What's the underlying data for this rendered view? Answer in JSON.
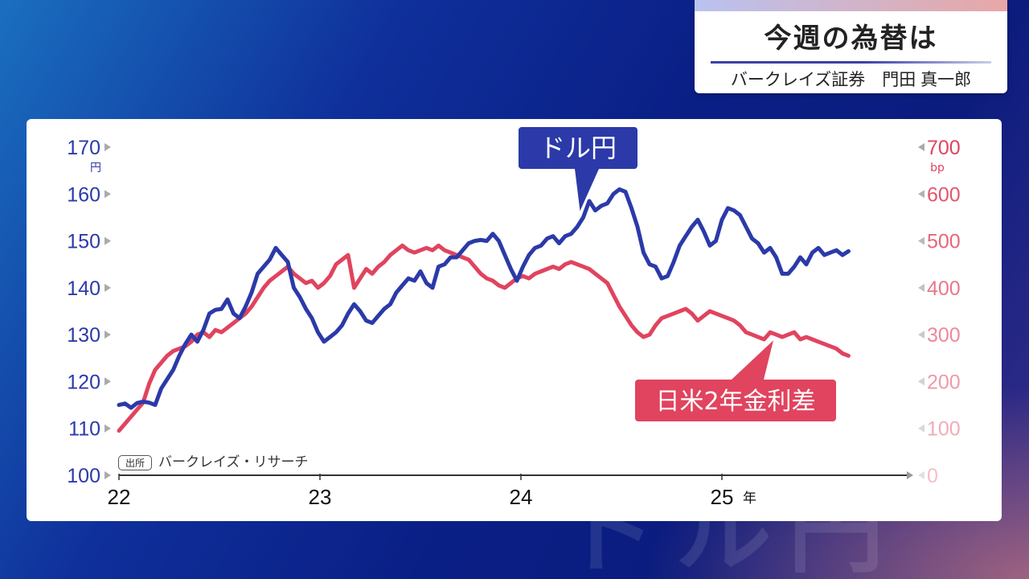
{
  "header": {
    "title": "今週の為替は",
    "subtitle": "バークレイズ証券　門田 真一郎"
  },
  "source": {
    "badge": "出所",
    "text": "バークレイズ・リサーチ"
  },
  "watermark": "ドル円",
  "colors": {
    "usd_jpy": "#2b3aa8",
    "rate_diff": "#e0445f",
    "left_axis": "#2b3aa8",
    "right_axis": "#e0445f"
  },
  "chart_data": {
    "type": "line",
    "x_ticks": [
      "22",
      "23",
      "24",
      "25"
    ],
    "x_unit": "年",
    "x_range": [
      2022.0,
      2025.92
    ],
    "y_left": {
      "unit": "円",
      "ticks": [
        "100",
        "110",
        "120",
        "130",
        "140",
        "150",
        "160",
        "170"
      ],
      "ylim": [
        100,
        170
      ]
    },
    "y_right": {
      "unit": "bp",
      "ticks": [
        "0",
        "100",
        "200",
        "300",
        "400",
        "500",
        "600",
        "700"
      ],
      "ylim": [
        0,
        700
      ]
    },
    "grid": false,
    "series": [
      {
        "name": "ドル円",
        "axis": "left",
        "x": [
          2022.0,
          2022.03,
          2022.06,
          2022.09,
          2022.12,
          2022.15,
          2022.18,
          2022.21,
          2022.24,
          2022.27,
          2022.3,
          2022.33,
          2022.36,
          2022.39,
          2022.42,
          2022.45,
          2022.48,
          2022.51,
          2022.54,
          2022.57,
          2022.6,
          2022.63,
          2022.66,
          2022.69,
          2022.72,
          2022.75,
          2022.78,
          2022.81,
          2022.84,
          2022.87,
          2022.9,
          2022.93,
          2022.96,
          2022.99,
          2023.02,
          2023.05,
          2023.08,
          2023.11,
          2023.14,
          2023.17,
          2023.2,
          2023.23,
          2023.26,
          2023.29,
          2023.32,
          2023.35,
          2023.38,
          2023.41,
          2023.44,
          2023.47,
          2023.5,
          2023.53,
          2023.56,
          2023.59,
          2023.62,
          2023.65,
          2023.68,
          2023.71,
          2023.74,
          2023.77,
          2023.8,
          2023.83,
          2023.86,
          2023.89,
          2023.92,
          2023.95,
          2023.98,
          2024.01,
          2024.04,
          2024.07,
          2024.1,
          2024.13,
          2024.16,
          2024.19,
          2024.22,
          2024.25,
          2024.28,
          2024.31,
          2024.34,
          2024.37,
          2024.4,
          2024.43,
          2024.46,
          2024.49,
          2024.52,
          2024.55,
          2024.58,
          2024.61,
          2024.64,
          2024.67,
          2024.7,
          2024.73,
          2024.76,
          2024.79,
          2024.82,
          2024.85,
          2024.88,
          2024.91,
          2024.94,
          2024.97,
          2025.0,
          2025.03,
          2025.06,
          2025.09,
          2025.12,
          2025.15,
          2025.18,
          2025.21,
          2025.24,
          2025.27,
          2025.3,
          2025.33,
          2025.36,
          2025.39,
          2025.42,
          2025.45,
          2025.48,
          2025.51,
          2025.54,
          2025.57,
          2025.6,
          2025.63
        ],
        "values": [
          115.0,
          115.3,
          114.4,
          115.4,
          115.7,
          115.5,
          115.0,
          118.5,
          120.5,
          122.5,
          125.5,
          128.0,
          130.0,
          128.5,
          131.0,
          134.5,
          135.3,
          135.5,
          137.5,
          134.5,
          133.5,
          136.0,
          139.0,
          143.0,
          144.5,
          146.0,
          148.5,
          147.0,
          145.5,
          140.0,
          138.0,
          135.5,
          133.5,
          130.5,
          128.5,
          129.5,
          130.5,
          132.0,
          134.5,
          136.5,
          135.0,
          133.0,
          132.5,
          134.0,
          135.5,
          136.5,
          139.0,
          140.5,
          142.0,
          141.5,
          143.5,
          141.0,
          140.0,
          144.5,
          145.0,
          146.5,
          146.5,
          148.0,
          149.5,
          150.0,
          150.2,
          150.0,
          151.5,
          150.0,
          147.0,
          144.0,
          141.5,
          144.5,
          147.0,
          148.5,
          149.0,
          150.5,
          151.0,
          149.5,
          151.0,
          151.5,
          153.0,
          155.0,
          158.5,
          156.5,
          157.5,
          158.0,
          160.0,
          161.0,
          160.5,
          157.0,
          153.0,
          147.5,
          145.0,
          144.5,
          142.0,
          142.5,
          145.5,
          149.0,
          151.0,
          153.0,
          154.5,
          152.0,
          149.0,
          150.0,
          154.5,
          157.0,
          156.5,
          155.5,
          153.0,
          150.5,
          149.5,
          147.5,
          148.5,
          146.5,
          143.0,
          143.0,
          144.5,
          146.5,
          145.0,
          147.5,
          148.5,
          147.0,
          147.5,
          148.0,
          147.0,
          147.8
        ]
      },
      {
        "name": "日米2年金利差",
        "axis": "right",
        "x": [
          2022.0,
          2022.03,
          2022.06,
          2022.09,
          2022.12,
          2022.15,
          2022.18,
          2022.21,
          2022.24,
          2022.27,
          2022.3,
          2022.33,
          2022.36,
          2022.39,
          2022.42,
          2022.45,
          2022.48,
          2022.51,
          2022.54,
          2022.57,
          2022.6,
          2022.63,
          2022.66,
          2022.69,
          2022.72,
          2022.75,
          2022.78,
          2022.81,
          2022.84,
          2022.87,
          2022.9,
          2022.93,
          2022.96,
          2022.99,
          2023.02,
          2023.05,
          2023.08,
          2023.11,
          2023.14,
          2023.17,
          2023.2,
          2023.23,
          2023.26,
          2023.29,
          2023.32,
          2023.35,
          2023.38,
          2023.41,
          2023.44,
          2023.47,
          2023.5,
          2023.53,
          2023.56,
          2023.59,
          2023.62,
          2023.65,
          2023.68,
          2023.71,
          2023.74,
          2023.77,
          2023.8,
          2023.83,
          2023.86,
          2023.89,
          2023.92,
          2023.95,
          2023.98,
          2024.01,
          2024.04,
          2024.07,
          2024.1,
          2024.13,
          2024.16,
          2024.19,
          2024.22,
          2024.25,
          2024.28,
          2024.31,
          2024.34,
          2024.37,
          2024.4,
          2024.43,
          2024.46,
          2024.49,
          2024.52,
          2024.55,
          2024.58,
          2024.61,
          2024.64,
          2024.67,
          2024.7,
          2024.73,
          2024.76,
          2024.79,
          2024.82,
          2024.85,
          2024.88,
          2024.91,
          2024.94,
          2024.97,
          2025.0,
          2025.03,
          2025.06,
          2025.09,
          2025.12,
          2025.15,
          2025.18,
          2025.21,
          2025.24,
          2025.27,
          2025.3,
          2025.33,
          2025.36,
          2025.39,
          2025.42,
          2025.45,
          2025.48,
          2025.51,
          2025.54,
          2025.57,
          2025.6,
          2025.63
        ],
        "values": [
          95,
          110,
          125,
          140,
          155,
          195,
          225,
          240,
          255,
          265,
          270,
          275,
          285,
          300,
          305,
          295,
          310,
          305,
          315,
          325,
          335,
          345,
          360,
          380,
          400,
          415,
          425,
          435,
          445,
          430,
          420,
          410,
          415,
          400,
          410,
          425,
          450,
          460,
          470,
          400,
          420,
          440,
          430,
          445,
          455,
          470,
          480,
          490,
          480,
          475,
          480,
          485,
          480,
          490,
          480,
          475,
          470,
          465,
          460,
          445,
          430,
          420,
          415,
          405,
          400,
          410,
          420,
          425,
          420,
          430,
          435,
          440,
          445,
          440,
          450,
          455,
          450,
          445,
          440,
          430,
          420,
          410,
          385,
          360,
          340,
          320,
          305,
          295,
          300,
          320,
          335,
          340,
          345,
          350,
          355,
          345,
          330,
          340,
          350,
          345,
          340,
          335,
          330,
          320,
          305,
          300,
          295,
          290,
          305,
          300,
          295,
          300,
          305,
          290,
          295,
          290,
          285,
          280,
          275,
          270,
          260,
          255
        ]
      }
    ],
    "annotations": [
      {
        "label": "ドル円",
        "series": "ドル円"
      },
      {
        "label": "日米2年金利差",
        "series": "日米2年金利差"
      }
    ]
  }
}
